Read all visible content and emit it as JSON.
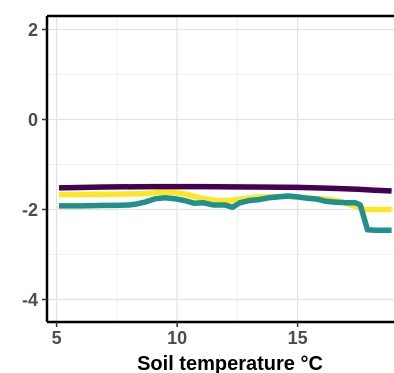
{
  "chart_data": {
    "type": "line",
    "title": "",
    "xlabel": "Soil temperature °C",
    "ylabel": "",
    "xlim": [
      4.6,
      19.0
    ],
    "ylim": [
      -4.5,
      2.3
    ],
    "x_ticks": [
      5,
      10,
      15
    ],
    "x_tick_labels": [
      "5",
      "10",
      "15"
    ],
    "y_ticks": [
      -4,
      -2,
      0,
      2
    ],
    "y_tick_labels": [
      "-4",
      "-2",
      "0",
      "2"
    ],
    "grid": true,
    "legend": "none",
    "series": [
      {
        "color": "#440154",
        "x": [
          5.1,
          7,
          9,
          11,
          13,
          15,
          16.5,
          17.5,
          18.2,
          18.9
        ],
        "y": [
          -1.52,
          -1.5,
          -1.49,
          -1.49,
          -1.5,
          -1.51,
          -1.53,
          -1.55,
          -1.57,
          -1.59
        ]
      },
      {
        "color": "#FDE725",
        "x": [
          5.1,
          7,
          8.6,
          9.2,
          9.8,
          10.3,
          11,
          11.6,
          12.2,
          12.6,
          13.2,
          13.8,
          14.5,
          15.0,
          15.6,
          16.2,
          16.8,
          17.2,
          17.8,
          18.2,
          18.9
        ],
        "y": [
          -1.67,
          -1.66,
          -1.65,
          -1.62,
          -1.62,
          -1.65,
          -1.75,
          -1.8,
          -1.8,
          -1.77,
          -1.73,
          -1.72,
          -1.71,
          -1.73,
          -1.75,
          -1.77,
          -1.82,
          -1.9,
          -2.0,
          -2.0,
          -2.0
        ]
      },
      {
        "color": "#21908C",
        "x": [
          5.1,
          6,
          7,
          7.5,
          8.0,
          8.3,
          8.7,
          9.1,
          9.5,
          9.9,
          10.3,
          10.7,
          11.1,
          11.5,
          12.0,
          12.3,
          12.6,
          13.0,
          13.4,
          13.8,
          14.2,
          14.6,
          15.0,
          15.4,
          15.8,
          16.2,
          16.6,
          17.0,
          17.4,
          17.6,
          17.9,
          18.2,
          18.5,
          18.9
        ],
        "y": [
          -1.92,
          -1.92,
          -1.91,
          -1.91,
          -1.9,
          -1.88,
          -1.83,
          -1.76,
          -1.74,
          -1.76,
          -1.8,
          -1.86,
          -1.85,
          -1.9,
          -1.9,
          -1.95,
          -1.85,
          -1.8,
          -1.78,
          -1.74,
          -1.72,
          -1.7,
          -1.72,
          -1.75,
          -1.77,
          -1.82,
          -1.84,
          -1.85,
          -1.85,
          -1.9,
          -2.45,
          -2.46,
          -2.46,
          -2.46
        ]
      }
    ]
  }
}
